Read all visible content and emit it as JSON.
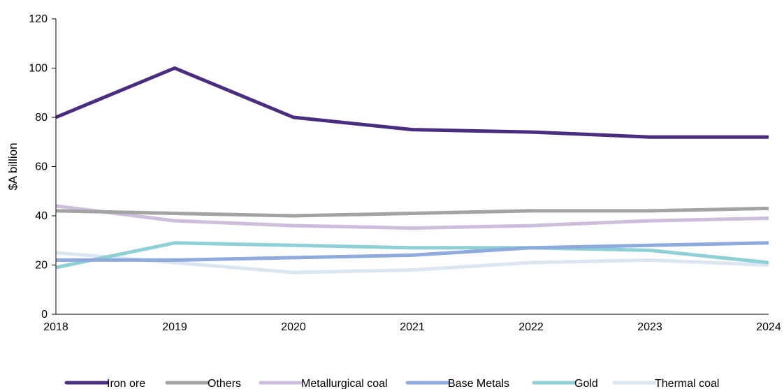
{
  "chart_data": {
    "type": "line",
    "title": "",
    "xlabel": "",
    "ylabel": "$A billion",
    "ylim": [
      0,
      120
    ],
    "yticks": [
      "0",
      "20",
      "40",
      "60",
      "80",
      "100",
      "120"
    ],
    "x": [
      "2018",
      "2019",
      "2020",
      "2021",
      "2022",
      "2023",
      "2024"
    ],
    "grid": false,
    "legend_position": "bottom",
    "series": [
      {
        "name": "Iron ore",
        "color": "#4b2d7f",
        "values": [
          80,
          100,
          80,
          75,
          74,
          72,
          72
        ]
      },
      {
        "name": "Others",
        "color": "#a3a3a3",
        "values": [
          42,
          41,
          40,
          41,
          42,
          42,
          43
        ]
      },
      {
        "name": "Metallurgical coal",
        "color": "#cdbfdc",
        "values": [
          44,
          38,
          36,
          35,
          36,
          38,
          39
        ]
      },
      {
        "name": "Base Metals",
        "color": "#8faadc",
        "values": [
          22,
          22,
          23,
          24,
          27,
          28,
          29
        ]
      },
      {
        "name": "Gold",
        "color": "#8fcfd6",
        "values": [
          19,
          29,
          28,
          27,
          27,
          26,
          21
        ]
      },
      {
        "name": "Thermal coal",
        "color": "#dce6f2",
        "values": [
          25,
          21,
          17,
          18,
          21,
          22,
          20
        ]
      }
    ]
  }
}
